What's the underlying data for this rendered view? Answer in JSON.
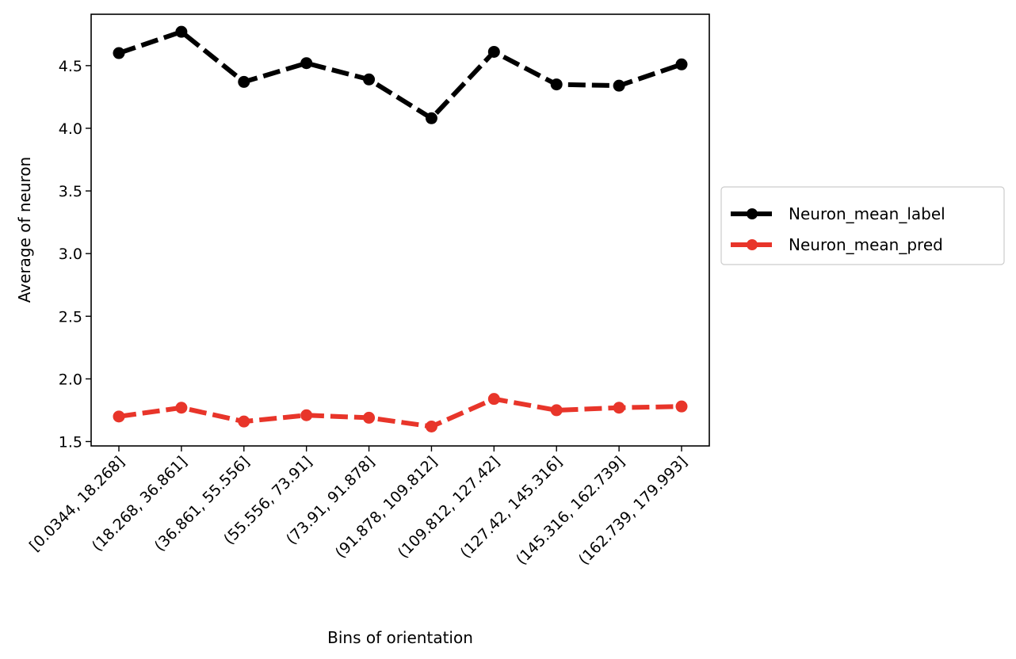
{
  "chart_data": {
    "type": "line",
    "title": "",
    "xlabel": "Bins of orientation",
    "ylabel": "Average of neuron",
    "categories": [
      "[0.0344,  18.268]",
      "(18.268, 36.861]",
      "(36.861, 55.556]",
      "(55.556, 73.91]",
      "(73.91, 91.878]",
      "(91.878, 109.812]",
      "(109.812, 127.42]",
      "(127.42, 145.316]",
      "(145.316, 162.739]",
      "(162.739, 179.993]"
    ],
    "yticks": [
      "1.5",
      "2.0",
      "2.5",
      "3.0",
      "3.5",
      "4.0",
      "4.5"
    ],
    "ylim": [
      1.465,
      4.91
    ],
    "grid": false,
    "legend_position": "outside-right",
    "series": [
      {
        "name": "Neuron_mean_label",
        "color": "#000000",
        "line_style": "dashed",
        "marker": "circle",
        "values": [
          4.6,
          4.77,
          4.37,
          4.52,
          4.39,
          4.08,
          4.61,
          4.35,
          4.34,
          4.51
        ]
      },
      {
        "name": "Neuron_mean_pred",
        "color": "#e8352a",
        "line_style": "dashed",
        "marker": "circle",
        "values": [
          1.7,
          1.77,
          1.66,
          1.71,
          1.69,
          1.62,
          1.84,
          1.75,
          1.77,
          1.78
        ]
      }
    ]
  }
}
